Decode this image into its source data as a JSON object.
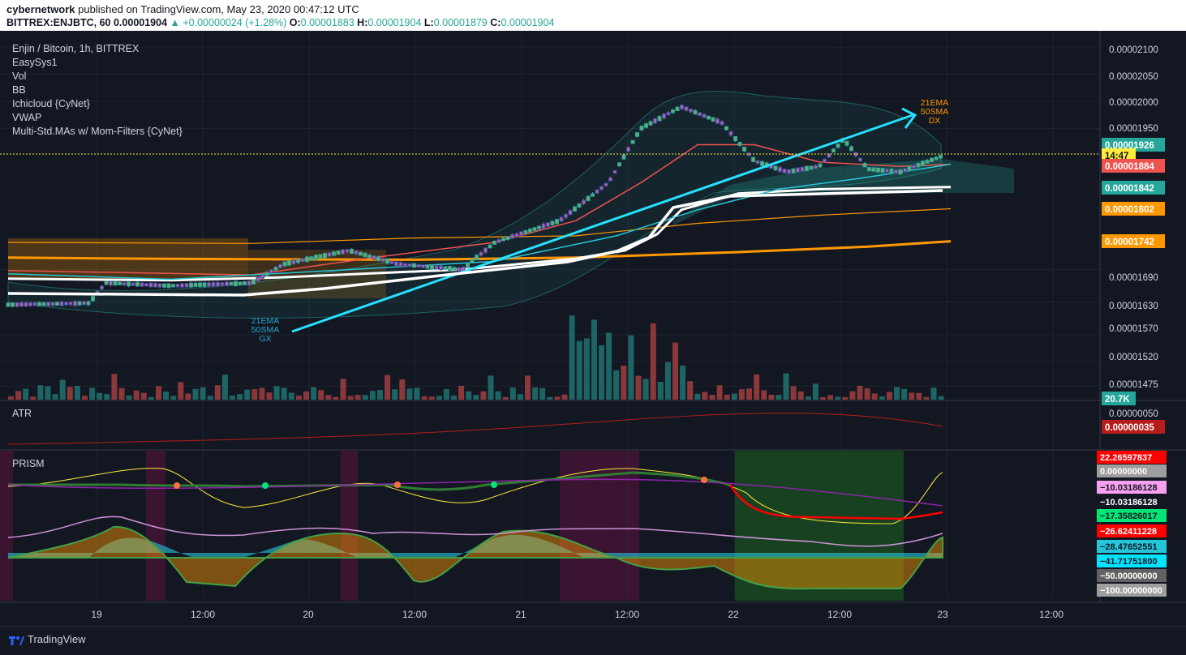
{
  "header": {
    "author": "cybernetwork",
    "published": "published on TradingView.com, May 23, 2020 00:47:12 UTC",
    "symbol": "BITTREX:ENJBTC, 60",
    "last": "0.00001904",
    "change": "+0.00000024 (+1.28%)",
    "o_label": "O:",
    "o": "0.00001883",
    "h_label": "H:",
    "h": "0.00001904",
    "l_label": "L:",
    "l": "0.00001879",
    "c_label": "C:",
    "c": "0.00001904"
  },
  "legend": {
    "title": "Enjin / Bitcoin, 1h, BITTREX",
    "indicators": [
      "EasySys1",
      "Vol",
      "BB",
      "Ichicloud {CyNet}",
      "VWAP",
      "Multi-Std.MAs w/ Mom-Filters {CyNet}"
    ]
  },
  "annotations": {
    "gx": [
      "21EMA",
      "50SMA",
      "GX"
    ],
    "dx": [
      "21EMA",
      "50SMA",
      "DX"
    ]
  },
  "axis_labels": {
    "price": [
      "0.00002100",
      "0.00002050",
      "0.00002000",
      "0.00001950",
      "0.00001630",
      "0.00001690",
      "0.00001570",
      "0.00001520",
      "0.00001475"
    ],
    "price_badges": [
      {
        "text": "0.00001926",
        "color": "#26a69a"
      },
      {
        "text": "14:47",
        "color": "#ffeb3b"
      },
      {
        "text": "0.00001884",
        "color": "#ef5350"
      },
      {
        "text": "0.00001842",
        "color": "#26a69a"
      },
      {
        "text": "0.00001802",
        "color": "#ff9800"
      },
      {
        "text": "0.00001742",
        "color": "#ff9800"
      },
      {
        "text": "20.7K",
        "color": "#26a69a"
      }
    ],
    "atr_ticks": [
      "0.00000050"
    ],
    "atr_badge": "0.00000035",
    "prism_badges": [
      {
        "text": "22.26597837",
        "color": "#ff0000"
      },
      {
        "text": "0.00000000",
        "color": "#9e9e9e"
      },
      {
        "text": "−10.03186128",
        "color": "#f8a0f0"
      },
      {
        "text": "−10.03186128",
        "color": "#131722"
      },
      {
        "text": "−17.35826017",
        "color": "#00e676"
      },
      {
        "text": "−26.62411228",
        "color": "#ff0000"
      },
      {
        "text": "−28.47652551",
        "color": "#26c6da"
      },
      {
        "text": "−41.71751800",
        "color": "#00e5ff"
      },
      {
        "text": "−50.00000000",
        "color": "#616161"
      },
      {
        "text": "−100.00000000",
        "color": "#9e9e9e"
      }
    ],
    "time": [
      "19",
      "12:00",
      "20",
      "12:00",
      "21",
      "12:00",
      "22",
      "12:00",
      "23",
      "12:00"
    ]
  },
  "panes": {
    "atr": "ATR",
    "prism": "PRISM"
  },
  "footer": {
    "brand": "TradingView"
  },
  "colors": {
    "bg": "#131722",
    "up": "#26a69a",
    "down": "#ef5350",
    "orange": "#ff9800",
    "cyan": "#26c6da",
    "white": "#ffffff"
  },
  "chart_data": {
    "type": "candlestick",
    "title": "Enjin / Bitcoin, 1h, BITTREX",
    "ylim": [
      1.45e-05,
      2.13e-05
    ],
    "y_ticks": [
      2.1e-05,
      2.05e-05,
      2e-05,
      1.95e-05,
      1.69e-05,
      1.63e-05,
      1.57e-05,
      1.52e-05,
      1.475e-05
    ],
    "x_ticks": [
      "19",
      "12:00",
      "20",
      "12:00",
      "21",
      "12:00",
      "22",
      "12:00",
      "23",
      "12:00"
    ],
    "series": [
      {
        "name": "EMA200",
        "points": [
          [
            0,
            1.712e-05
          ],
          [
            150,
            1.71e-05
          ],
          [
            300,
            1.709e-05
          ],
          [
            500,
            1.708e-05
          ],
          [
            700,
            1.712e-05
          ],
          [
            900,
            1.722e-05
          ],
          [
            1060,
            1.732e-05
          ],
          [
            1162,
            1.742e-05
          ]
        ]
      },
      {
        "name": "SMA100",
        "points": [
          [
            0,
            1.74e-05
          ],
          [
            300,
            1.738e-05
          ],
          [
            500,
            1.748e-05
          ],
          [
            700,
            1.752e-05
          ],
          [
            850,
            1.775e-05
          ],
          [
            1000,
            1.79e-05
          ],
          [
            1162,
            1.802e-05
          ]
        ]
      },
      {
        "name": "VWAP",
        "points": [
          [
            0,
            1.673e-05
          ],
          [
            200,
            1.67e-05
          ],
          [
            330,
            1.675e-05
          ],
          [
            560,
            1.69e-05
          ],
          [
            700,
            1.71e-05
          ],
          [
            760,
            1.725e-05
          ],
          [
            800,
            1.755e-05
          ],
          [
            830,
            1.8e-05
          ],
          [
            900,
            1.83e-05
          ],
          [
            1000,
            1.838e-05
          ],
          [
            1162,
            1.842e-05
          ]
        ]
      },
      {
        "name": "EMA21",
        "points": [
          [
            0,
            1.688e-05
          ],
          [
            300,
            1.68e-05
          ],
          [
            450,
            1.712e-05
          ],
          [
            600,
            1.74e-05
          ],
          [
            700,
            1.78e-05
          ],
          [
            780,
            1.85e-05
          ],
          [
            850,
            1.92e-05
          ],
          [
            920,
            1.92e-05
          ],
          [
            1000,
            1.888e-05
          ],
          [
            1100,
            1.88e-05
          ],
          [
            1162,
            1.884e-05
          ]
        ]
      },
      {
        "name": "SMA50",
        "points": [
          [
            0,
            1.682e-05
          ],
          [
            200,
            1.672e-05
          ],
          [
            400,
            1.688e-05
          ],
          [
            600,
            1.705e-05
          ],
          [
            750,
            1.752e-05
          ],
          [
            850,
            1.8e-05
          ],
          [
            950,
            1.838e-05
          ],
          [
            1050,
            1.858e-05
          ],
          [
            1162,
            1.884e-05
          ]
        ]
      }
    ]
  }
}
